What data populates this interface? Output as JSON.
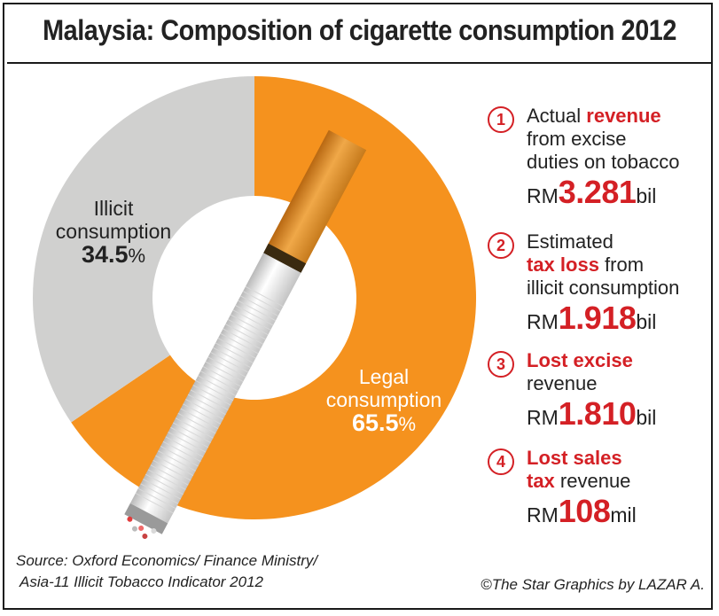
{
  "title": "Malaysia: Composition of cigarette consumption 2012",
  "chart_data": {
    "type": "pie",
    "title": "Malaysia: Composition of cigarette consumption 2012",
    "slices": [
      {
        "label": "Illicit consumption",
        "label_line1": "Illicit",
        "label_line2": "consumption",
        "value": 34.5,
        "value_text": "34.5",
        "color": "#d0d0cf"
      },
      {
        "label": "Legal consumption",
        "label_line1": "Legal",
        "label_line2": "consumption",
        "value": 65.5,
        "value_text": "65.5",
        "color": "#f5921e"
      }
    ],
    "unit": "%"
  },
  "facts": [
    {
      "number": "1",
      "line1_pre": "Actual ",
      "line1_hl": "revenue",
      "line1_post": "",
      "line2": "from excise",
      "line3": "duties on tobacco",
      "prefix": "RM",
      "value": "3.281",
      "unit": "bil"
    },
    {
      "number": "2",
      "line1_pre": "Estimated",
      "line1_hl": "",
      "line1_post": "",
      "line2_hl": "tax loss",
      "line2_post": " from",
      "line3": "illicit consumption",
      "prefix": "RM",
      "value": "1.918",
      "unit": "bil"
    },
    {
      "number": "3",
      "line1_hl": "Lost excise",
      "line2": "revenue",
      "prefix": "RM",
      "value": "1.810",
      "unit": "bil"
    },
    {
      "number": "4",
      "line1_hl": "Lost sales",
      "line2_hl": "tax",
      "line2_post": " revenue",
      "prefix": "RM",
      "value": "108",
      "unit": "mil"
    }
  ],
  "source_line1": "Source: Oxford Economics/ Finance Ministry/",
  "source_line2": "Asia-11 Illicit Tobacco Indicator 2012",
  "credit": "©The Star Graphics by LAZAR A.",
  "colors": {
    "accent": "#d42025",
    "legal": "#f5921e",
    "illicit": "#d0d0cf",
    "filter": "#e0922f"
  }
}
